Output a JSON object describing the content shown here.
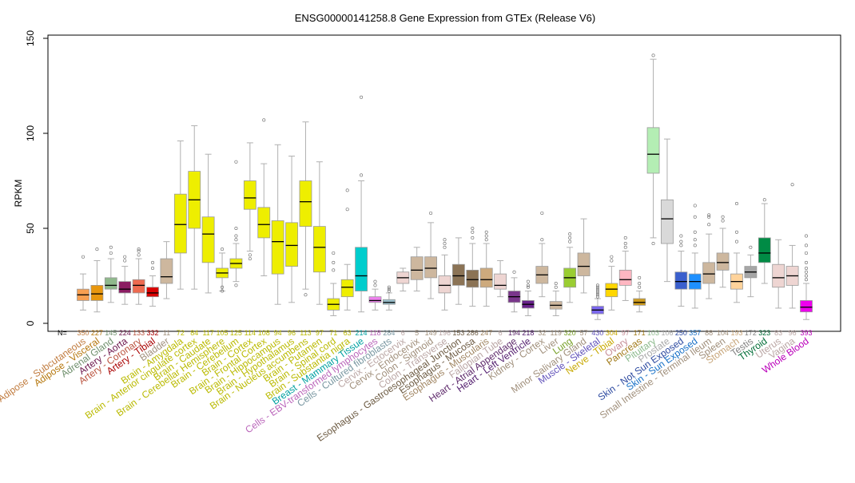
{
  "chart_data": {
    "type": "boxplot",
    "title": "ENSG00000141258.8 Gene Expression from GTEx (Release V6)",
    "ylabel": "RPKM",
    "xlabel": "",
    "ylim": [
      0,
      150
    ],
    "yticks": [
      0,
      50,
      100,
      150
    ],
    "n_prefix": "N=",
    "grid": false,
    "categories": [
      {
        "label": "Adipose - Subcutaneous",
        "n": "350",
        "color": "#F79F51",
        "q1": 12,
        "median": 15,
        "q3": 18,
        "low": 7,
        "high": 26,
        "outliers": [
          35
        ]
      },
      {
        "label": "Adipose - Visceral",
        "n": "227",
        "color": "#E8970E",
        "q1": 12,
        "median": 15.5,
        "q3": 20,
        "low": 6,
        "high": 33,
        "outliers": [
          39
        ]
      },
      {
        "label": "Adrenal Gland",
        "n": "145",
        "color": "#8FB98C",
        "q1": 18,
        "median": 20,
        "q3": 24,
        "low": 11,
        "high": 34,
        "outliers": [
          37,
          40
        ]
      },
      {
        "label": "Artery - Aorta",
        "n": "224",
        "color": "#8B1C62",
        "q1": 16,
        "median": 18,
        "q3": 22,
        "low": 10,
        "high": 30,
        "outliers": [
          33,
          35
        ]
      },
      {
        "label": "Artery - Coronary",
        "n": "133",
        "color": "#EE6A50",
        "q1": 16,
        "median": 20,
        "q3": 23,
        "low": 10,
        "high": 34,
        "outliers": [
          36,
          38,
          39
        ]
      },
      {
        "label": "Artery - Tibial",
        "n": "332",
        "color": "#D90000",
        "q1": 14,
        "median": 16,
        "q3": 19,
        "low": 9,
        "high": 25,
        "outliers": [
          29,
          32
        ]
      },
      {
        "label": "Bladder",
        "n": "11",
        "color": "#CDB79E",
        "q1": 21,
        "median": 24.5,
        "q3": 34,
        "low": 13,
        "high": 43,
        "outliers": []
      },
      {
        "label": "Brain - Amygdala",
        "n": "72",
        "color": "#EEEE00",
        "q1": 37,
        "median": 52,
        "q3": 68,
        "low": 18,
        "high": 96,
        "outliers": []
      },
      {
        "label": "Brain - Anterior cingulate cortex",
        "n": "84",
        "color": "#EEEE00",
        "q1": 50,
        "median": 65,
        "q3": 80,
        "low": 18,
        "high": 104,
        "outliers": []
      },
      {
        "label": "Brain - Caudate",
        "n": "117",
        "color": "#EEEE00",
        "q1": 32,
        "median": 47,
        "q3": 56,
        "low": 16,
        "high": 89,
        "outliers": []
      },
      {
        "label": "Brain - Cerebellar Hemisphere",
        "n": "105",
        "color": "#EEEE00",
        "q1": 24,
        "median": 26.5,
        "q3": 29,
        "low": 17,
        "high": 37,
        "outliers": [
          17,
          19,
          39
        ]
      },
      {
        "label": "Brain - Cerebellum",
        "n": "125",
        "color": "#EEEE00",
        "q1": 29,
        "median": 31.5,
        "q3": 34,
        "low": 22,
        "high": 42,
        "outliers": [
          20,
          44,
          46,
          50,
          85
        ]
      },
      {
        "label": "Brain - Cortex",
        "n": "114",
        "color": "#EEEE00",
        "q1": 60,
        "median": 66,
        "q3": 75,
        "low": 38,
        "high": 95,
        "outliers": [
          34,
          36
        ]
      },
      {
        "label": "Brain - Frontal Cortex",
        "n": "108",
        "color": "#EEEE00",
        "q1": 45,
        "median": 52,
        "q3": 61,
        "low": 25,
        "high": 84,
        "outliers": [
          107
        ]
      },
      {
        "label": "Brain - Hippocampus",
        "n": "94",
        "color": "#EEEE00",
        "q1": 26,
        "median": 43,
        "q3": 54,
        "low": 10,
        "high": 94,
        "outliers": []
      },
      {
        "label": "Brain - Hypothalamus",
        "n": "96",
        "color": "#EEEE00",
        "q1": 30,
        "median": 41,
        "q3": 53,
        "low": 11,
        "high": 88,
        "outliers": []
      },
      {
        "label": "Brain - Nucleus accumbens",
        "n": "113",
        "color": "#EEEE00",
        "q1": 51,
        "median": 64,
        "q3": 75,
        "low": 18,
        "high": 106,
        "outliers": [
          15
        ]
      },
      {
        "label": "Brain - Putamen",
        "n": "97",
        "color": "#EEEE00",
        "q1": 27,
        "median": 40,
        "q3": 51,
        "low": 10,
        "high": 85,
        "outliers": []
      },
      {
        "label": "Brain - Spinal cord",
        "n": "71",
        "color": "#EEEE00",
        "q1": 7,
        "median": 10,
        "q3": 13,
        "low": 4,
        "high": 21,
        "outliers": [
          28,
          32,
          37
        ]
      },
      {
        "label": "Brain - Substantia nigra",
        "n": "63",
        "color": "#EEEE00",
        "q1": 14,
        "median": 19,
        "q3": 23,
        "low": 7,
        "high": 31,
        "outliers": [
          60,
          70
        ]
      },
      {
        "label": "Breast - Mammary Tissue",
        "n": "214",
        "color": "#00CDCD",
        "q1": 17,
        "median": 25,
        "q3": 40,
        "low": 6,
        "high": 75,
        "outliers": [
          78,
          119
        ]
      },
      {
        "label": "Cells - EBV-transformed lymphocytes",
        "n": "118",
        "color": "#EE82EE",
        "q1": 11,
        "median": 12,
        "q3": 14,
        "low": 7,
        "high": 18,
        "outliers": [
          20,
          22
        ]
      },
      {
        "label": "Cells - Cultured fibroblasts",
        "n": "284",
        "color": "#9AC0CD",
        "q1": 10,
        "median": 11,
        "q3": 12.5,
        "low": 7,
        "high": 16,
        "outliers": [
          17,
          18,
          19
        ]
      },
      {
        "label": "Cervix - Ectocervix",
        "n": "6",
        "color": "#EED5D2",
        "q1": 21,
        "median": 24,
        "q3": 27,
        "low": 17,
        "high": 29,
        "outliers": []
      },
      {
        "label": "Cervix - Endocervix",
        "n": "5",
        "color": "#CDB79E",
        "q1": 23,
        "median": 28,
        "q3": 35,
        "low": 17,
        "high": 40,
        "outliers": []
      },
      {
        "label": "Colon - Sigmoid",
        "n": "149",
        "color": "#CDB79E",
        "q1": 24,
        "median": 29,
        "q3": 35,
        "low": 13,
        "high": 53,
        "outliers": [
          58
        ]
      },
      {
        "label": "Colon - Transverse",
        "n": "196",
        "color": "#EED5D2",
        "q1": 16,
        "median": 20,
        "q3": 25,
        "low": 7,
        "high": 36,
        "outliers": [
          40,
          42,
          44
        ]
      },
      {
        "label": "Esophagus - Gastroesophageal Junction",
        "n": "153",
        "color": "#8B7355",
        "q1": 20,
        "median": 25,
        "q3": 31,
        "low": 10,
        "high": 45,
        "outliers": []
      },
      {
        "label": "Esophagus - Mucosa",
        "n": "286",
        "color": "#8B7355",
        "q1": 19,
        "median": 23,
        "q3": 28,
        "low": 9,
        "high": 42,
        "outliers": [
          45,
          48,
          50
        ]
      },
      {
        "label": "Esophagus - Muscularis",
        "n": "247",
        "color": "#CDAA7D",
        "q1": 19,
        "median": 23,
        "q3": 29,
        "low": 9,
        "high": 42,
        "outliers": [
          44,
          46,
          48
        ]
      },
      {
        "label": "Fallopian Tube",
        "n": "6",
        "color": "#EED5D2",
        "q1": 18,
        "median": 20,
        "q3": 26,
        "low": 14,
        "high": 33,
        "outliers": []
      },
      {
        "label": "Heart - Atrial Appendage",
        "n": "194",
        "color": "#7A378B",
        "q1": 11,
        "median": 14,
        "q3": 17,
        "low": 6,
        "high": 24,
        "outliers": [
          27
        ]
      },
      {
        "label": "Heart - Left Ventricle",
        "n": "218",
        "color": "#68228B",
        "q1": 8,
        "median": 10,
        "q3": 12,
        "low": 4,
        "high": 17,
        "outliers": [
          19,
          20,
          22
        ]
      },
      {
        "label": "Kidney - Cortex",
        "n": "32",
        "color": "#CDB79E",
        "q1": 21,
        "median": 25.5,
        "q3": 30,
        "low": 14,
        "high": 42,
        "outliers": [
          44,
          58
        ]
      },
      {
        "label": "Liver",
        "n": "119",
        "color": "#CDB79E",
        "q1": 7.5,
        "median": 9.5,
        "q3": 11.5,
        "low": 4,
        "high": 17,
        "outliers": [
          19,
          21
        ]
      },
      {
        "label": "Lung",
        "n": "320",
        "color": "#9ACD32",
        "q1": 19,
        "median": 24,
        "q3": 29,
        "low": 11,
        "high": 40,
        "outliers": [
          43,
          45,
          47
        ]
      },
      {
        "label": "Minor Salivary Gland",
        "n": "57",
        "color": "#CDB79E",
        "q1": 25,
        "median": 30,
        "q3": 37,
        "low": 16,
        "high": 55,
        "outliers": []
      },
      {
        "label": "Muscle - Skeletal",
        "n": "430",
        "color": "#7B68EE",
        "q1": 5,
        "median": 7,
        "q3": 9,
        "low": 2,
        "high": 13,
        "outliers": [
          14,
          15,
          16,
          17,
          18,
          19,
          20
        ]
      },
      {
        "label": "Nerve - Tibial",
        "n": "304",
        "color": "#FFD700",
        "q1": 14,
        "median": 18,
        "q3": 21,
        "low": 7,
        "high": 30,
        "outliers": [
          33,
          35
        ]
      },
      {
        "label": "Ovary",
        "n": "97",
        "color": "#FFB6C1",
        "q1": 20,
        "median": 23,
        "q3": 28,
        "low": 12,
        "high": 38,
        "outliers": [
          40,
          42,
          45
        ]
      },
      {
        "label": "Pancreas",
        "n": "171",
        "color": "#CD9B1D",
        "q1": 9.5,
        "median": 11,
        "q3": 13,
        "low": 6,
        "high": 17,
        "outliers": [
          19,
          21,
          24
        ]
      },
      {
        "label": "Pituitary",
        "n": "103",
        "color": "#B4EEB4",
        "q1": 79,
        "median": 89,
        "q3": 103,
        "low": 45,
        "high": 139,
        "outliers": [
          42,
          141
        ]
      },
      {
        "label": "Prostate",
        "n": "106",
        "color": "#D9D9D9",
        "q1": 42,
        "median": 55,
        "q3": 65,
        "low": 22,
        "high": 97,
        "outliers": []
      },
      {
        "label": "Skin - Not Sun Exposed",
        "n": "250",
        "color": "#3A5FCD",
        "q1": 18,
        "median": 22,
        "q3": 27,
        "low": 9,
        "high": 38,
        "outliers": [
          41,
          43,
          46
        ]
      },
      {
        "label": "Skin - Sun Exposed",
        "n": "357",
        "color": "#1E90FF",
        "q1": 18,
        "median": 22,
        "q3": 26,
        "low": 8,
        "high": 37,
        "outliers": [
          41,
          44,
          48,
          56,
          62
        ]
      },
      {
        "label": "Small Intestine - Terminal Ileum",
        "n": "88",
        "color": "#CDB79E",
        "q1": 21,
        "median": 26,
        "q3": 32,
        "low": 13,
        "high": 47,
        "outliers": [
          52,
          56,
          57
        ]
      },
      {
        "label": "Spleen",
        "n": "104",
        "color": "#CDB79E",
        "q1": 28,
        "median": 32,
        "q3": 37,
        "low": 19,
        "high": 50,
        "outliers": [
          54,
          56
        ]
      },
      {
        "label": "Stomach",
        "n": "193",
        "color": "#FFD39B",
        "q1": 18,
        "median": 22,
        "q3": 26,
        "low": 11,
        "high": 37,
        "outliers": [
          43,
          48,
          63
        ]
      },
      {
        "label": "Testis",
        "n": "172",
        "color": "#A6A6A6",
        "q1": 24,
        "median": 27,
        "q3": 30,
        "low": 14,
        "high": 36,
        "outliers": [
          40
        ]
      },
      {
        "label": "Thyroid",
        "n": "323",
        "color": "#008B45",
        "q1": 32,
        "median": 37,
        "q3": 45,
        "low": 21,
        "high": 63,
        "outliers": [
          65
        ]
      },
      {
        "label": "Uterus",
        "n": "83",
        "color": "#EED5D2",
        "q1": 19,
        "median": 24,
        "q3": 31,
        "low": 8,
        "high": 44,
        "outliers": []
      },
      {
        "label": "Vagina",
        "n": "96",
        "color": "#EED5D2",
        "q1": 20,
        "median": 25,
        "q3": 30,
        "low": 8,
        "high": 41,
        "outliers": [
          73
        ]
      },
      {
        "label": "Whole Blood",
        "n": "393",
        "color": "#EE00EE",
        "q1": 6,
        "median": 8.5,
        "q3": 12,
        "low": 2,
        "high": 21,
        "outliers": [
          23,
          25,
          27,
          29,
          32,
          37,
          41,
          46
        ]
      }
    ]
  }
}
